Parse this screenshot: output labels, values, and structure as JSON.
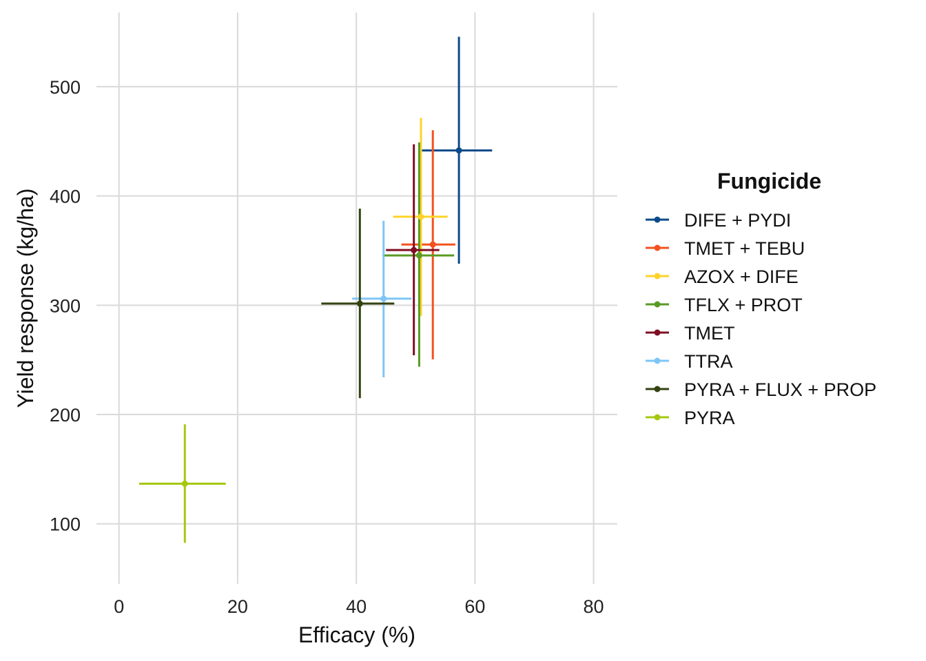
{
  "chart_data": {
    "type": "scatter",
    "title": "",
    "xlabel": "Efficacy (%)",
    "ylabel": "Yield response (kg/ha)",
    "xlim": [
      -3.8,
      84
    ],
    "ylim": [
      45,
      568
    ],
    "xticks": [
      0,
      20,
      40,
      60,
      80
    ],
    "yticks": [
      100,
      200,
      300,
      400,
      500
    ],
    "xtick_labels": [
      "0",
      "20",
      "40",
      "60",
      "80"
    ],
    "ytick_labels": [
      "100",
      "200",
      "300",
      "400",
      "500"
    ],
    "grid": true,
    "error_bars": "horizontal and vertical",
    "legend": {
      "title": "Fungicide",
      "position": "right"
    },
    "series": [
      {
        "name": "DIFE + PYDI",
        "color": "#0b4a8a",
        "x": 57.3,
        "y": 441.7,
        "xmin": 50.6,
        "xmax": 62.9,
        "ymin": 338.0,
        "ymax": 545.7
      },
      {
        "name": "TMET + TEBU",
        "color": "#f4511e",
        "x": 52.9,
        "y": 355.6,
        "xmin": 47.6,
        "xmax": 56.7,
        "ymin": 250.5,
        "ymax": 460.2
      },
      {
        "name": "AZOX + DIFE",
        "color": "#fdd32a",
        "x": 50.9,
        "y": 381.0,
        "xmin": 46.2,
        "xmax": 55.4,
        "ymin": 290.2,
        "ymax": 471.5
      },
      {
        "name": "TFLX + PROT",
        "color": "#5a9a23",
        "x": 50.6,
        "y": 345.6,
        "xmin": 44.4,
        "xmax": 56.5,
        "ymin": 243.7,
        "ymax": 449.0
      },
      {
        "name": "TMET",
        "color": "#7f0e22",
        "x": 49.7,
        "y": 350.5,
        "xmin": 45.0,
        "xmax": 54.0,
        "ymin": 254.2,
        "ymax": 447.3
      },
      {
        "name": "TTRA",
        "color": "#7ec5f7",
        "x": 44.6,
        "y": 306.0,
        "xmin": 39.3,
        "xmax": 49.3,
        "ymin": 234.0,
        "ymax": 377.2
      },
      {
        "name": "PYRA + FLUX + PROP",
        "color": "#344211",
        "x": 40.6,
        "y": 301.5,
        "xmin": 34.1,
        "xmax": 46.4,
        "ymin": 215.0,
        "ymax": 388.4
      },
      {
        "name": "PYRA",
        "color": "#a5c80f",
        "x": 11.1,
        "y": 136.7,
        "xmin": 3.4,
        "xmax": 18.0,
        "ymin": 82.6,
        "ymax": 191.0
      }
    ]
  }
}
